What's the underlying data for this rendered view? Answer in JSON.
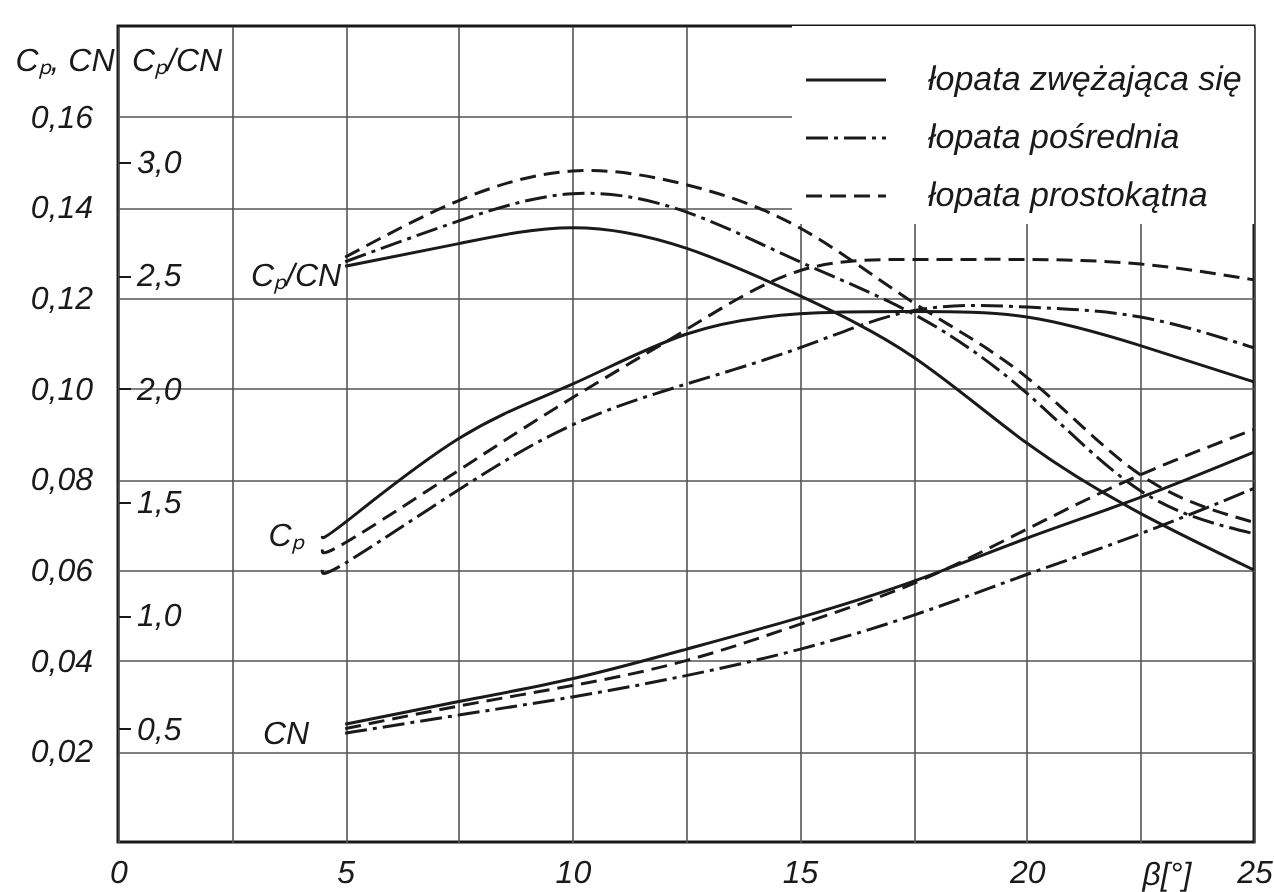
{
  "chart_data": {
    "type": "line",
    "xlabel": "β[°]",
    "ylabel": "Cₚ, CN",
    "y2label": "Cₚ/CN",
    "xlim": [
      0,
      25
    ],
    "xticks": [
      0,
      {
        "value": 2.5,
        "label": null
      },
      5,
      {
        "value": 7.5,
        "label": null
      },
      10,
      {
        "value": 12.5,
        "label": null
      },
      15,
      {
        "value": 17.5,
        "label": null
      },
      20,
      {
        "value": 22.5,
        "label": null
      },
      25
    ],
    "ylim": [
      0,
      0.18
    ],
    "yticks": [
      {
        "value": 0.02,
        "label": "0,02"
      },
      {
        "value": 0.04,
        "label": "0,04"
      },
      {
        "value": 0.06,
        "label": "0,06"
      },
      {
        "value": 0.08,
        "label": "0,08"
      },
      {
        "value": 0.1,
        "label": "0,10"
      },
      {
        "value": 0.12,
        "label": "0,12"
      },
      {
        "value": 0.14,
        "label": "0,14"
      },
      {
        "value": 0.16,
        "label": "0,16"
      }
    ],
    "y2lim": [
      0,
      3.6
    ],
    "y2ticks": [
      {
        "value": 0.5,
        "label": "0,5"
      },
      {
        "value": 1.0,
        "label": "1,0"
      },
      {
        "value": 1.5,
        "label": "1,5"
      },
      {
        "value": 2.0,
        "label": "2,0"
      },
      {
        "value": 2.5,
        "label": "2,5"
      },
      {
        "value": 3.0,
        "label": "3,0"
      }
    ],
    "grid": true,
    "legend": "top right",
    "annotations": [
      "Cₚ/CN",
      "Cₚ",
      "CN"
    ],
    "series": [
      {
        "name": "łopata zwężająca się",
        "color": "#1a1a1a",
        "line_style": "solid",
        "x": [
          4.5,
          5,
          7.5,
          10,
          12.5,
          15,
          17.5,
          20,
          22.5,
          25
        ],
        "values": [
          0.0675,
          0.0705,
          0.089,
          0.101,
          0.112,
          0.1165,
          0.117,
          0.1158,
          0.1095,
          0.1015
        ]
      },
      {
        "color": "#1a1a1a",
        "line_style": "solid",
        "x": [
          5,
          7.5,
          10,
          12.5,
          15,
          17.5,
          20,
          22.5,
          25
        ],
        "values": [
          0.026,
          0.031,
          0.036,
          0.0425,
          0.0495,
          0.0575,
          0.067,
          0.076,
          0.086
        ]
      },
      {
        "color": "#1a1a1a",
        "line_style": "solid",
        "axis": "y2",
        "x": [
          5,
          7.5,
          10,
          12.5,
          15,
          17.5,
          20,
          22.5,
          25
        ],
        "values": [
          2.54,
          2.64,
          2.71,
          2.62,
          2.41,
          2.14,
          1.76,
          1.45,
          1.2
        ]
      },
      {
        "name": "łopata pośrednia",
        "color": "#1a1a1a",
        "line_style": "dashdot",
        "x": [
          4.5,
          5,
          7.5,
          10,
          12.5,
          15,
          17.5,
          20,
          22.5,
          25
        ],
        "values": [
          0.06,
          0.0615,
          0.0777,
          0.092,
          0.101,
          0.109,
          0.1172,
          0.118,
          0.1158,
          0.109
        ]
      },
      {
        "color": "#1a1a1a",
        "line_style": "dashdot",
        "x": [
          5,
          7.5,
          10,
          12.5,
          15,
          17.5,
          20,
          22.5,
          25
        ],
        "values": [
          0.024,
          0.028,
          0.032,
          0.0367,
          0.0425,
          0.05,
          0.059,
          0.068,
          0.078
        ]
      },
      {
        "color": "#1a1a1a",
        "line_style": "dashdot",
        "axis": "y2",
        "x": [
          5,
          7.5,
          10,
          12.5,
          15,
          17.5,
          20,
          22.5,
          25
        ],
        "values": [
          2.56,
          2.74,
          2.86,
          2.78,
          2.56,
          2.33,
          1.98,
          1.55,
          1.36
        ]
      },
      {
        "name": "łopata prostokątna",
        "color": "#1a1a1a",
        "line_style": "dashed",
        "x": [
          4.5,
          5,
          7.5,
          10,
          12.5,
          15,
          17.5,
          20,
          22.5,
          25
        ],
        "values": [
          0.0645,
          0.066,
          0.082,
          0.098,
          0.113,
          0.126,
          0.1285,
          0.1285,
          0.1275,
          0.124
        ]
      },
      {
        "color": "#1a1a1a",
        "line_style": "dashed",
        "x": [
          5,
          7.5,
          10,
          12.5,
          15,
          17.5,
          20,
          22.5,
          25
        ],
        "values": [
          0.025,
          0.03,
          0.0345,
          0.04,
          0.048,
          0.057,
          0.069,
          0.081,
          0.091
        ]
      },
      {
        "color": "#1a1a1a",
        "line_style": "dashed",
        "axis": "y2",
        "x": [
          5,
          7.5,
          10,
          12.5,
          15,
          17.5,
          20,
          22.5,
          25
        ],
        "values": [
          2.58,
          2.83,
          2.96,
          2.9,
          2.71,
          2.38,
          2.05,
          1.62,
          1.41
        ]
      }
    ]
  }
}
